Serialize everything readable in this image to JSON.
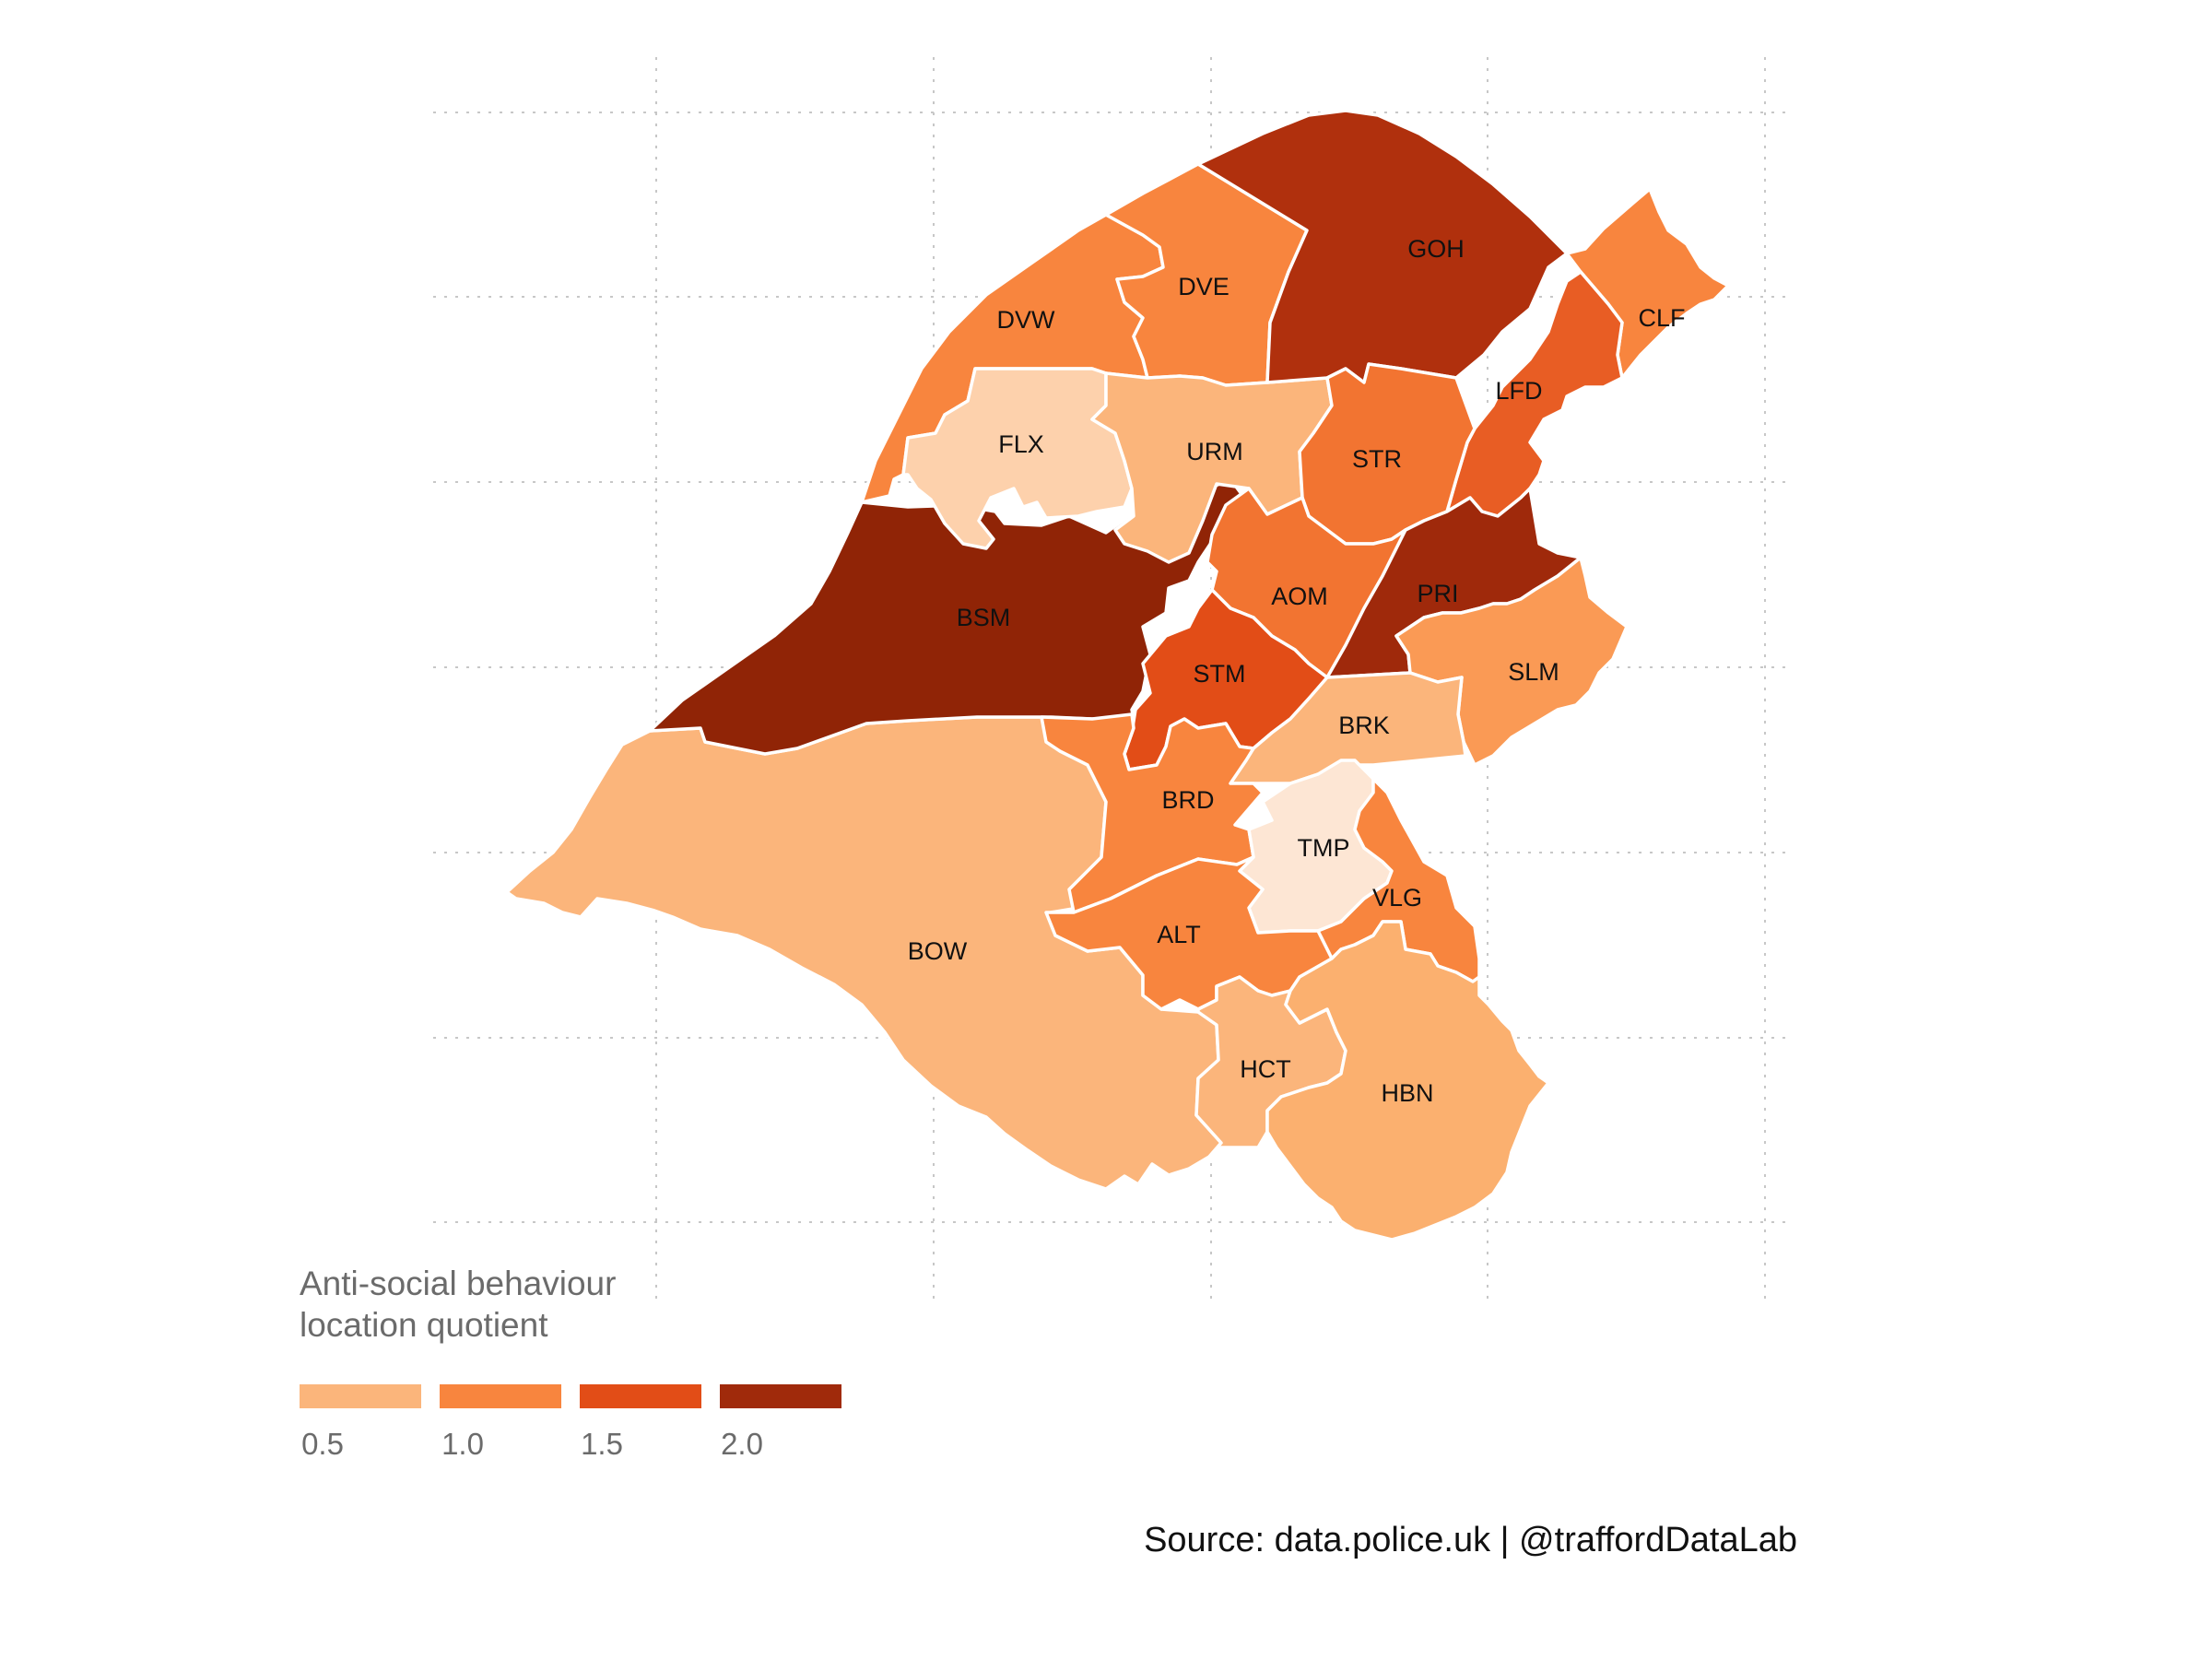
{
  "legend": {
    "title": "Anti-social behaviour\nlocation quotient",
    "keys": [
      "#fbb57b",
      "#f8853e",
      "#e24d17",
      "#a02a0b"
    ],
    "ticks": [
      "0.5",
      "1.0",
      "1.5",
      "2.0"
    ]
  },
  "caption": "Source: data.police.uk  |  @traffordDataLab",
  "palette": {
    "v0": "#fde6d4",
    "v1": "#fdd1ac",
    "v2": "#fbb57b",
    "v3": "#f8853e",
    "v4": "#f27431",
    "v5": "#e85d24",
    "v6": "#e24d17",
    "v7": "#b0300d",
    "v8": "#902406"
  },
  "wards": [
    {
      "code": "GOH",
      "fill": "#b0300d"
    },
    {
      "code": "BSM",
      "fill": "#902406"
    },
    {
      "code": "PRI",
      "fill": "#9f290b"
    },
    {
      "code": "STM",
      "fill": "#e24d17"
    },
    {
      "code": "LFD",
      "fill": "#e85d24"
    },
    {
      "code": "STR",
      "fill": "#f27431"
    },
    {
      "code": "AOM",
      "fill": "#f27431"
    },
    {
      "code": "CLF",
      "fill": "#f8853e"
    },
    {
      "code": "DVE",
      "fill": "#f8853e"
    },
    {
      "code": "DVW",
      "fill": "#f8853e"
    },
    {
      "code": "BRD",
      "fill": "#f8853e"
    },
    {
      "code": "ALT",
      "fill": "#f8853e"
    },
    {
      "code": "VLG",
      "fill": "#f8853e"
    },
    {
      "code": "SLM",
      "fill": "#fa9a55"
    },
    {
      "code": "URM",
      "fill": "#fbb57b"
    },
    {
      "code": "BRK",
      "fill": "#fbb57b"
    },
    {
      "code": "BOW",
      "fill": "#fbb57b"
    },
    {
      "code": "HCT",
      "fill": "#fbb57b"
    },
    {
      "code": "HBN",
      "fill": "#fbb06f"
    },
    {
      "code": "FLX",
      "fill": "#fdd1ac"
    },
    {
      "code": "TMP",
      "fill": "#fde6d4"
    }
  ]
}
